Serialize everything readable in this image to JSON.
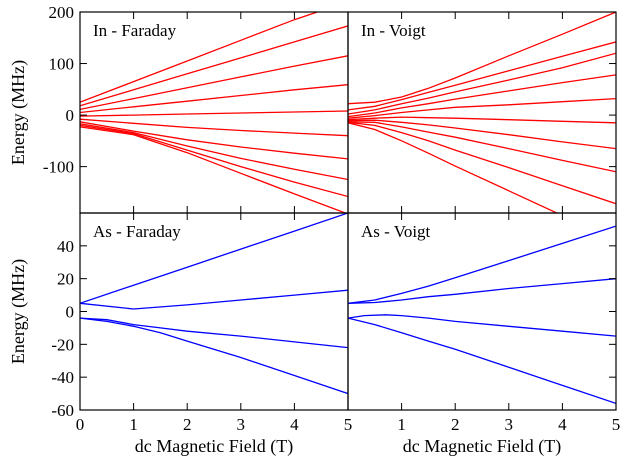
{
  "chart_data": [
    {
      "type": "line",
      "title": "In - Faraday",
      "xlabel": "",
      "ylabel": "Energy (MHz)",
      "xlim": [
        0,
        5
      ],
      "ylim": [
        -190,
        200
      ],
      "yticks": [
        -100,
        0,
        100,
        200
      ],
      "xticks": [
        0,
        1,
        2,
        3,
        4,
        5
      ],
      "color": "#ff0000",
      "series": [
        {
          "x": [
            0,
            1,
            2,
            3,
            4,
            5
          ],
          "values": [
            25,
            65,
            105,
            145,
            185,
            220
          ]
        },
        {
          "x": [
            0,
            1,
            2,
            3,
            4,
            5
          ],
          "values": [
            18,
            49,
            80,
            111,
            142,
            173
          ]
        },
        {
          "x": [
            0,
            1,
            2,
            3,
            4,
            5
          ],
          "values": [
            11,
            32,
            53,
            74,
            95,
            115
          ]
        },
        {
          "x": [
            0,
            1,
            2,
            3,
            4,
            5
          ],
          "values": [
            5,
            16,
            27,
            38,
            49,
            59
          ]
        },
        {
          "x": [
            0,
            1,
            2,
            3,
            4,
            5
          ],
          "values": [
            -2,
            0,
            2,
            4,
            6,
            8
          ]
        },
        {
          "x": [
            0,
            1,
            2,
            3,
            4,
            5
          ],
          "values": [
            -8,
            -16,
            -24,
            -30,
            -35,
            -40
          ]
        },
        {
          "x": [
            0,
            1,
            2,
            3,
            4,
            5
          ],
          "values": [
            -13,
            -31,
            -48,
            -62,
            -74,
            -85
          ]
        },
        {
          "x": [
            0,
            1,
            2,
            3,
            4,
            5
          ],
          "values": [
            -17,
            -34,
            -60,
            -84,
            -105,
            -125
          ]
        },
        {
          "x": [
            0,
            1,
            2,
            3,
            4,
            5
          ],
          "values": [
            -20,
            -36,
            -68,
            -100,
            -130,
            -158
          ]
        },
        {
          "x": [
            0,
            1,
            2,
            3,
            4,
            5
          ],
          "values": [
            -23,
            -38,
            -73,
            -113,
            -153,
            -192
          ]
        }
      ]
    },
    {
      "type": "line",
      "title": "In - Voigt",
      "xlabel": "",
      "ylabel": "",
      "xlim": [
        0,
        5
      ],
      "ylim": [
        -190,
        200
      ],
      "xticks": [
        0,
        1,
        2,
        3,
        4,
        5
      ],
      "color": "#ff0000",
      "series": [
        {
          "x": [
            0,
            0.5,
            1,
            1.5,
            2,
            3,
            4,
            5
          ],
          "values": [
            22,
            25,
            35,
            52,
            72,
            115,
            157,
            200
          ]
        },
        {
          "x": [
            0,
            0.5,
            1,
            1.5,
            2,
            3,
            4,
            5
          ],
          "values": [
            10,
            17,
            30,
            44,
            58,
            86,
            114,
            142
          ]
        },
        {
          "x": [
            0,
            0.5,
            1,
            1.5,
            2,
            3,
            4,
            5
          ],
          "values": [
            2,
            10,
            22,
            33,
            45,
            68,
            92,
            120
          ]
        },
        {
          "x": [
            0,
            0.5,
            1,
            1.5,
            2,
            3,
            4,
            5
          ],
          "values": [
            -3,
            4,
            14,
            22,
            31,
            47,
            63,
            78
          ]
        },
        {
          "x": [
            0,
            0.5,
            1,
            1.5,
            2,
            3,
            4,
            5
          ],
          "values": [
            -6,
            -1,
            5,
            10,
            15,
            20,
            26,
            32
          ]
        },
        {
          "x": [
            0,
            0.5,
            1,
            1.5,
            2,
            3,
            4,
            5
          ],
          "values": [
            -9,
            -6,
            -4,
            -5,
            -6,
            -9,
            -12,
            -15
          ]
        },
        {
          "x": [
            0,
            0.5,
            1,
            1.5,
            2,
            3,
            4,
            5
          ],
          "values": [
            -11,
            -10,
            -14,
            -19,
            -25,
            -38,
            -52,
            -65
          ]
        },
        {
          "x": [
            0,
            0.5,
            1,
            1.5,
            2,
            3,
            4,
            5
          ],
          "values": [
            -13,
            -14,
            -23,
            -33,
            -43,
            -65,
            -88,
            -110
          ]
        },
        {
          "x": [
            0,
            0.5,
            1,
            1.5,
            2,
            3,
            4,
            5
          ],
          "values": [
            -14,
            -20,
            -34,
            -50,
            -68,
            -102,
            -137,
            -172
          ]
        },
        {
          "x": [
            0,
            0.5,
            1,
            1.5,
            2,
            3,
            4,
            5
          ],
          "values": [
            -15,
            -28,
            -50,
            -74,
            -99,
            -147,
            -195,
            -243
          ]
        }
      ]
    },
    {
      "type": "line",
      "title": "As - Faraday",
      "xlabel": "dc Magnetic Field (T)",
      "ylabel": "Energy (MHz)",
      "xlim": [
        0,
        5
      ],
      "ylim": [
        -60,
        60
      ],
      "yticks": [
        -60,
        -40,
        -20,
        0,
        20,
        40
      ],
      "xticks": [
        0,
        1,
        2,
        3,
        4,
        5
      ],
      "color": "#0000ff",
      "series": [
        {
          "x": [
            0,
            1,
            2,
            3,
            4,
            5
          ],
          "values": [
            5,
            16,
            27,
            38,
            49,
            60
          ]
        },
        {
          "x": [
            0,
            1,
            2,
            3,
            4,
            5
          ],
          "values": [
            5,
            1.5,
            4,
            7,
            10,
            13
          ]
        },
        {
          "x": [
            0,
            0.5,
            1,
            1.5,
            2,
            3,
            4,
            5
          ],
          "values": [
            -4,
            -5,
            -8,
            -10,
            -12,
            -15,
            -18.5,
            -22
          ]
        },
        {
          "x": [
            0,
            0.5,
            1,
            1.5,
            2,
            3,
            4,
            5
          ],
          "values": [
            -4,
            -6,
            -9,
            -13,
            -18,
            -28,
            -39,
            -50
          ]
        }
      ]
    },
    {
      "type": "line",
      "title": "As - Voigt",
      "xlabel": "dc Magnetic Field (T)",
      "ylabel": "",
      "xlim": [
        0,
        5
      ],
      "ylim": [
        -60,
        60
      ],
      "xticks": [
        0,
        1,
        2,
        3,
        4,
        5
      ],
      "color": "#0000ff",
      "series": [
        {
          "x": [
            0,
            0.5,
            1,
            1.5,
            2,
            3,
            4,
            5
          ],
          "values": [
            5,
            7,
            11,
            15.5,
            20.5,
            31,
            41.5,
            52
          ]
        },
        {
          "x": [
            0,
            0.5,
            1,
            1.5,
            2,
            3,
            4,
            5
          ],
          "values": [
            5,
            5.5,
            7,
            9,
            10.5,
            14,
            17,
            20
          ]
        },
        {
          "x": [
            0,
            0.3,
            0.7,
            1,
            1.5,
            2,
            3,
            4,
            5
          ],
          "values": [
            -4,
            -2.5,
            -2,
            -2.5,
            -4,
            -6,
            -9,
            -12,
            -15
          ]
        },
        {
          "x": [
            0,
            0.5,
            1,
            1.5,
            2,
            3,
            4,
            5
          ],
          "values": [
            -4,
            -8,
            -13,
            -18,
            -23,
            -34,
            -45,
            -56
          ]
        }
      ]
    }
  ]
}
